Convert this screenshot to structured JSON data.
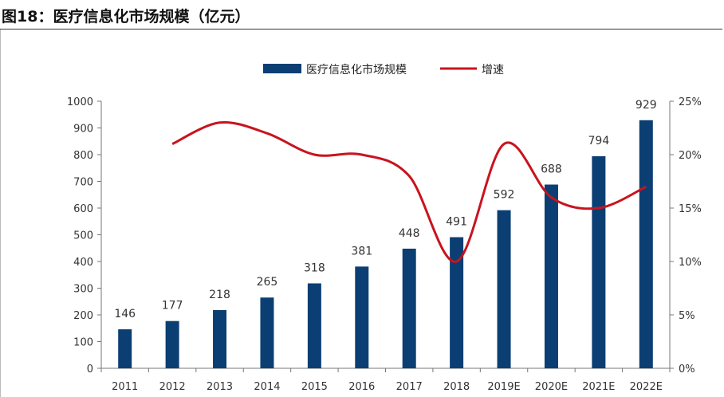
{
  "page": {
    "title": "图18：医疗信息化市场规模（亿元）"
  },
  "chart_data": {
    "type": "bar",
    "title": "",
    "xlabel": "",
    "ylabel": "",
    "categories": [
      "2011",
      "2012",
      "2013",
      "2014",
      "2015",
      "2016",
      "2017",
      "2018",
      "2019E",
      "2020E",
      "2021E",
      "2022E"
    ],
    "series": [
      {
        "name": "医疗信息化市场规模",
        "type": "bar",
        "axis": "left",
        "color": "#0b3f73",
        "values": [
          146,
          177,
          218,
          265,
          318,
          381,
          448,
          491,
          592,
          688,
          794,
          929
        ]
      },
      {
        "name": "增速",
        "type": "line",
        "axis": "right",
        "color": "#c8141e",
        "values": [
          null,
          21,
          23,
          22,
          20,
          20,
          18,
          10,
          21,
          16,
          15,
          17
        ]
      }
    ],
    "ylim_left": [
      0,
      1000
    ],
    "yticks_left": [
      "0",
      "100",
      "200",
      "300",
      "400",
      "500",
      "600",
      "700",
      "800",
      "900",
      "1000"
    ],
    "ylim_right": [
      0,
      25
    ],
    "yticks_right": [
      "0%",
      "5%",
      "10%",
      "15%",
      "20%",
      "25%"
    ],
    "legend": {
      "placement": "top-center",
      "entries": [
        "医疗信息化市场规模",
        "增速"
      ]
    },
    "grid": false
  }
}
